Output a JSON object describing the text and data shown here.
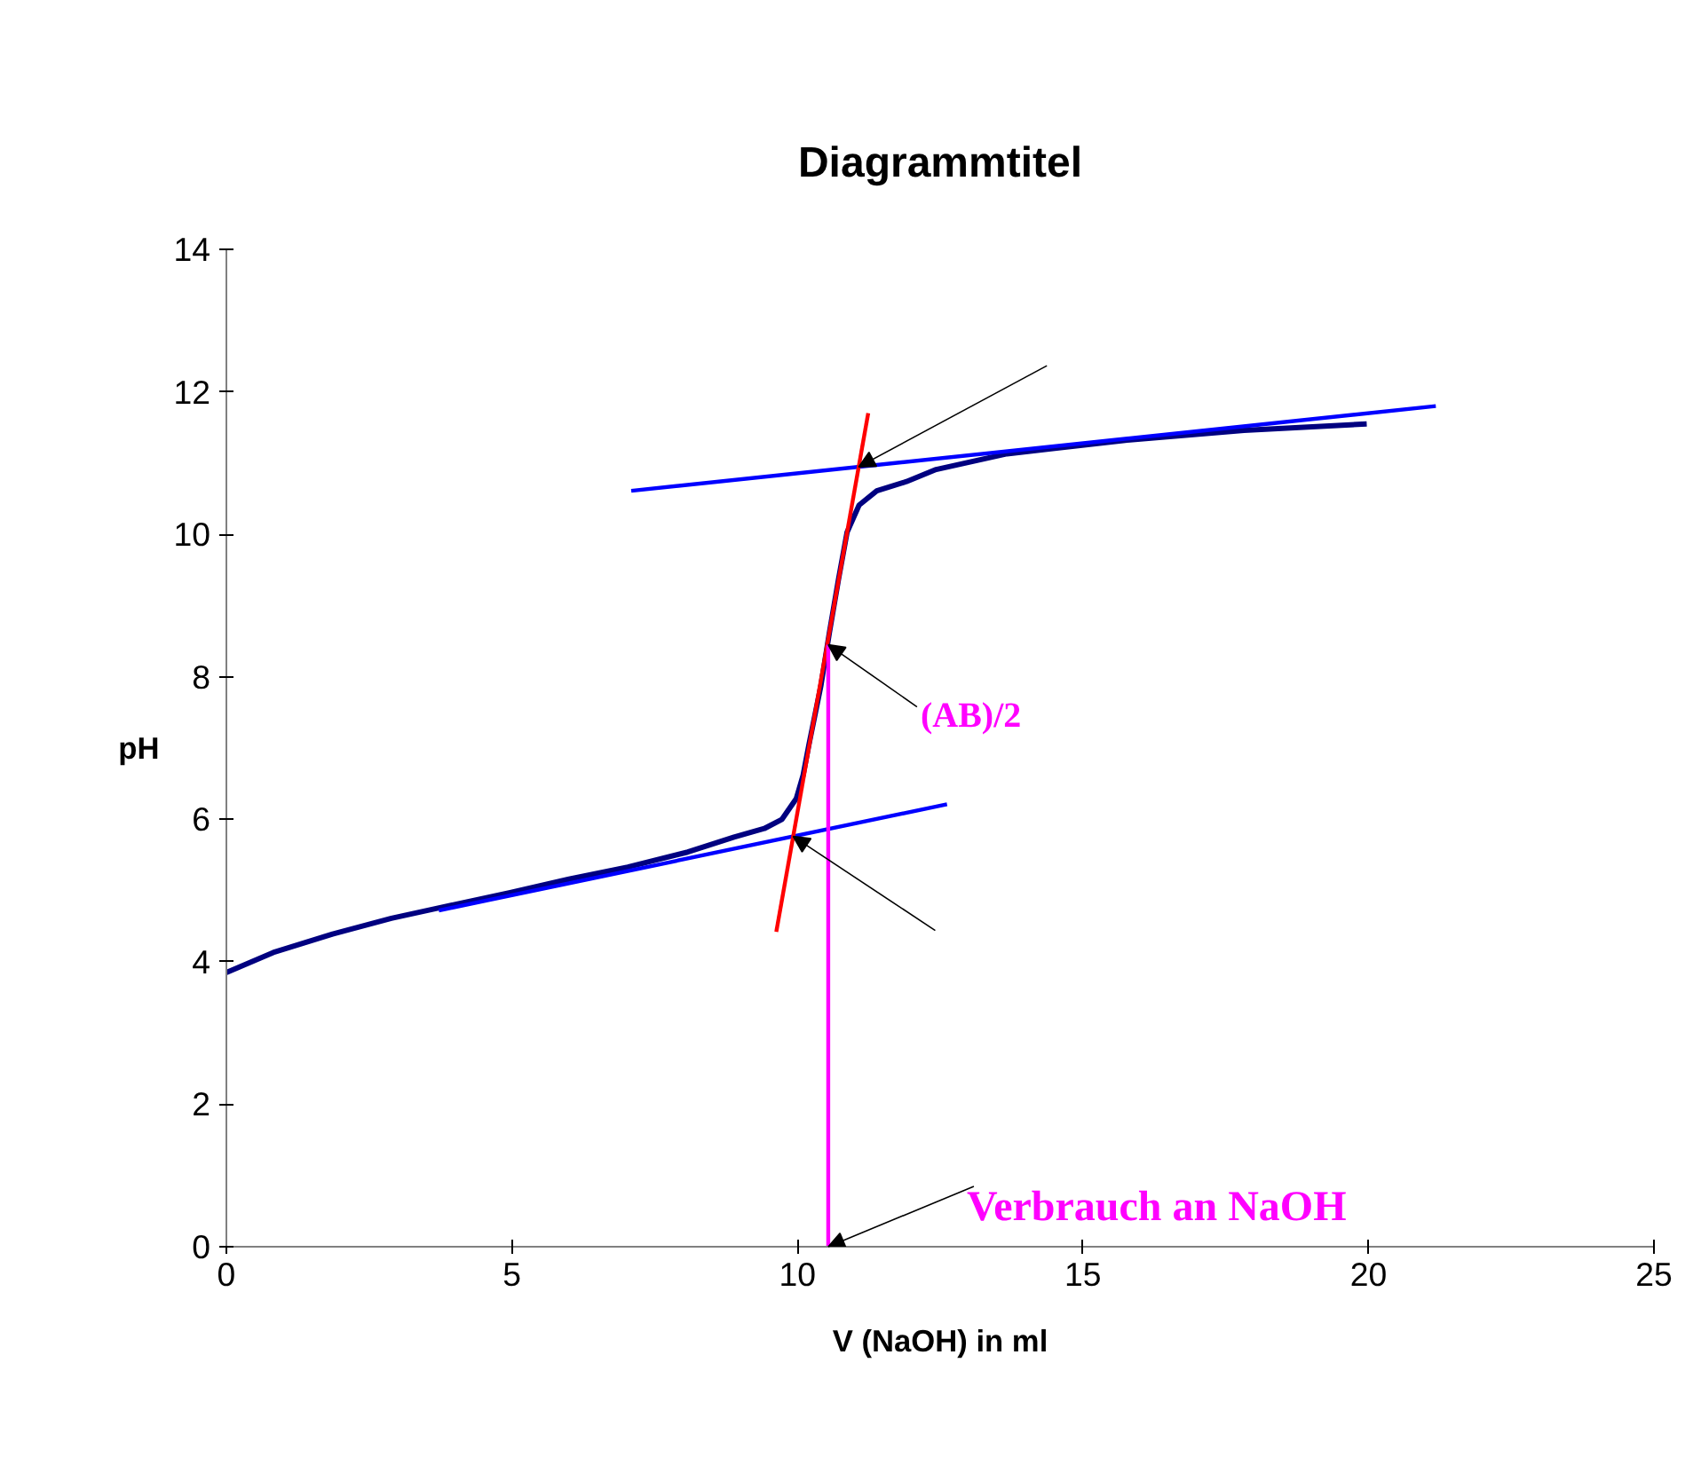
{
  "chart_data": {
    "type": "line",
    "title": "Diagrammtitel",
    "xlabel": "V (NaOH) in ml",
    "ylabel": "pH",
    "xlim": [
      0,
      25
    ],
    "ylim": [
      0,
      14
    ],
    "xticks": [
      0,
      5,
      10,
      15,
      20,
      25
    ],
    "yticks": [
      0,
      2,
      4,
      6,
      8,
      10,
      12,
      14
    ],
    "grid": false,
    "marker": "none",
    "line_style": "solid",
    "series": [
      {
        "color": "#000080",
        "x": [
          0,
          0.82,
          1.86,
          2.89,
          3.92,
          4.97,
          6.0,
          7.03,
          8.08,
          8.89,
          9.42,
          9.73,
          9.98,
          10.1,
          10.2,
          10.41,
          10.56,
          10.72,
          10.87,
          11.08,
          11.39,
          11.91,
          12.43,
          13.67,
          15.74,
          17.82,
          19.97
        ],
        "values": [
          3.85,
          4.13,
          4.39,
          4.61,
          4.79,
          4.97,
          5.16,
          5.33,
          5.54,
          5.75,
          5.87,
          6.0,
          6.29,
          6.62,
          7.04,
          7.87,
          8.62,
          9.37,
          10.03,
          10.41,
          10.61,
          10.74,
          10.91,
          11.13,
          11.32,
          11.46,
          11.55
        ]
      },
      {
        "color": "#0000ff",
        "x": [
          3.72,
          12.62
        ],
        "values": [
          4.72,
          6.21
        ]
      },
      {
        "color": "#0000ff",
        "x": [
          7.09,
          21.18
        ],
        "values": [
          10.61,
          11.8
        ]
      },
      {
        "color": "#ff0000",
        "x": [
          9.63,
          11.24
        ],
        "values": [
          4.42,
          11.7
        ]
      },
      {
        "color": "#ff00ff",
        "x": [
          10.54,
          10.54
        ],
        "values": [
          0,
          8.45
        ]
      }
    ],
    "annotations": [
      {
        "text": "(AB)/2",
        "x": 10.54,
        "y": 8.45
      },
      {
        "text": "Verbrauch an NaOH",
        "x": 10.54,
        "y": 0
      }
    ]
  }
}
